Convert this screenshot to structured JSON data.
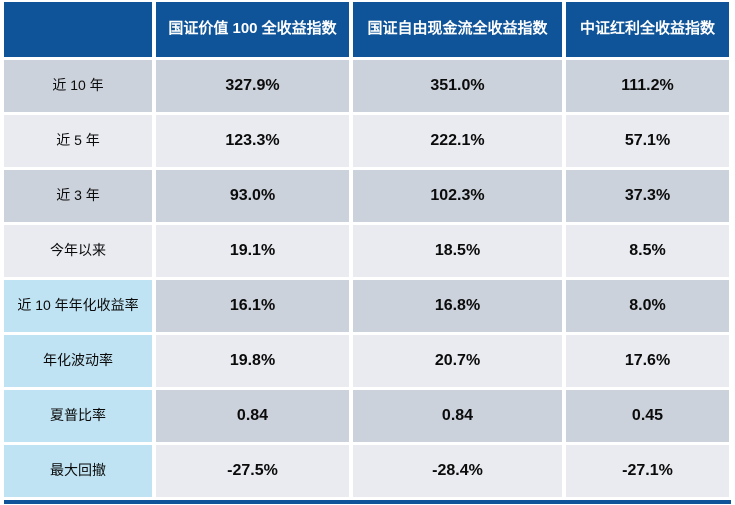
{
  "colors": {
    "header_bg": "#0f5499",
    "row_dark_bg": "#ccd2db",
    "row_light_bg": "#e9ebf0",
    "label_highlight_bg": "#bfe3f3"
  },
  "table": {
    "corner_label": "",
    "columns": [
      "国证价值 100 全收益指数",
      "国证自由现金流全收益指数",
      "中证红利全收益指数"
    ],
    "rows": [
      {
        "label": "近 10 年",
        "values": [
          "327.9%",
          "351.0%",
          "111.2%"
        ]
      },
      {
        "label": "近 5 年",
        "values": [
          "123.3%",
          "222.1%",
          "57.1%"
        ]
      },
      {
        "label": "近 3 年",
        "values": [
          "93.0%",
          "102.3%",
          "37.3%"
        ]
      },
      {
        "label": "今年以来",
        "values": [
          "19.1%",
          "18.5%",
          "8.5%"
        ]
      },
      {
        "label": "近 10 年年化收益率",
        "values": [
          "16.1%",
          "16.8%",
          "8.0%"
        ]
      },
      {
        "label": "年化波动率",
        "values": [
          "19.8%",
          "20.7%",
          "17.6%"
        ]
      },
      {
        "label": "夏普比率",
        "values": [
          "0.84",
          "0.84",
          "0.45"
        ]
      },
      {
        "label": "最大回撤",
        "values": [
          "-27.5%",
          "-28.4%",
          "-27.1%"
        ]
      }
    ]
  },
  "chart_data": {
    "type": "table",
    "title": "",
    "column_headers": [
      "国证价值 100 全收益指数",
      "国证自由现金流全收益指数",
      "中证红利全收益指数"
    ],
    "row_headers": [
      "近 10 年",
      "近 5 年",
      "近 3 年",
      "今年以来",
      "近 10 年年化收益率",
      "年化波动率",
      "夏普比率",
      "最大回撤"
    ],
    "series": [
      {
        "name": "国证价值 100 全收益指数",
        "values": [
          327.9,
          123.3,
          93.0,
          19.1,
          16.1,
          19.8,
          0.84,
          -27.5
        ]
      },
      {
        "name": "国证自由现金流全收益指数",
        "values": [
          351.0,
          222.1,
          102.3,
          18.5,
          16.8,
          20.7,
          0.84,
          -28.4
        ]
      },
      {
        "name": "中证红利全收益指数",
        "values": [
          111.2,
          57.1,
          37.3,
          8.5,
          8.0,
          17.6,
          0.45,
          -27.1
        ]
      }
    ],
    "value_units": [
      "%",
      "%",
      "%",
      "%",
      "%",
      "%",
      "",
      "%"
    ]
  }
}
